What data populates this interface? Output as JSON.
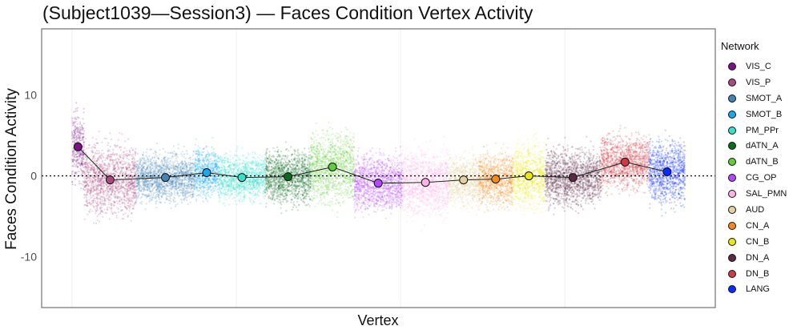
{
  "chart_data": {
    "type": "scatter",
    "title": "(Subject1039—Session3) — Faces Condition Vertex Activity",
    "xlabel": "Vertex",
    "ylabel": "Faces Condition Activity",
    "ylim": [
      -16.3,
      18.2
    ],
    "xlim": [
      -3700,
      78300
    ],
    "yticks": [
      -10,
      0,
      10
    ],
    "ytick_labels": [
      "-10",
      "0",
      "10"
    ],
    "x_gridlines": [
      0,
      20000,
      40000,
      60000
    ],
    "reference_line_y": 0,
    "legend": {
      "title": "Network",
      "placement": "right"
    },
    "networks": [
      {
        "name": "VIS_C",
        "color": "#7A1486",
        "vertex_range": [
          0,
          1460
        ],
        "mean": 3.6,
        "spread": 2.6
      },
      {
        "name": "VIS_P",
        "color": "#A8497F",
        "vertex_range": [
          1460,
          7800
        ],
        "mean": -0.5,
        "spread": 2.6
      },
      {
        "name": "SMOT_A",
        "color": "#4682B4",
        "vertex_range": [
          7800,
          14930
        ],
        "mean": -0.2,
        "spread": 1.8
      },
      {
        "name": "SMOT_B",
        "color": "#19A9EC",
        "vertex_range": [
          14930,
          17850
        ],
        "mean": 0.4,
        "spread": 1.8
      },
      {
        "name": "PM_PPr",
        "color": "#3ADFCB",
        "vertex_range": [
          17850,
          23510
        ],
        "mean": -0.2,
        "spread": 1.7
      },
      {
        "name": "dATN_A",
        "color": "#0B6B1E",
        "vertex_range": [
          23510,
          29070
        ],
        "mean": -0.1,
        "spread": 2.0
      },
      {
        "name": "dATN_B",
        "color": "#62CC3A",
        "vertex_range": [
          29070,
          34340
        ],
        "mean": 1.1,
        "spread": 2.6
      },
      {
        "name": "CG_OP",
        "color": "#B44AF7",
        "vertex_range": [
          34340,
          40200
        ],
        "mean": -0.9,
        "spread": 2.0
      },
      {
        "name": "SAL_PMN",
        "color": "#FFB3E6",
        "vertex_range": [
          40200,
          45850
        ],
        "mean": -0.8,
        "spread": 2.4
      },
      {
        "name": "AUD",
        "color": "#E3D0A0",
        "vertex_range": [
          45850,
          49460
        ],
        "mean": -0.5,
        "spread": 1.8
      },
      {
        "name": "CN_A",
        "color": "#F28C1E",
        "vertex_range": [
          49460,
          53660
        ],
        "mean": -0.4,
        "spread": 2.0
      },
      {
        "name": "CN_B",
        "color": "#E8E61A",
        "vertex_range": [
          53660,
          57560
        ],
        "mean": 0.0,
        "spread": 2.3
      },
      {
        "name": "DN_A",
        "color": "#5C2A44",
        "vertex_range": [
          57560,
          64390
        ],
        "mean": -0.2,
        "spread": 2.1
      },
      {
        "name": "DN_B",
        "color": "#CD3C46",
        "vertex_range": [
          64390,
          70240
        ],
        "mean": 1.7,
        "spread": 2.0
      },
      {
        "name": "LANG",
        "color": "#0A2DFF",
        "vertex_range": [
          70240,
          74630
        ],
        "mean": 0.5,
        "spread": 2.4
      }
    ]
  }
}
